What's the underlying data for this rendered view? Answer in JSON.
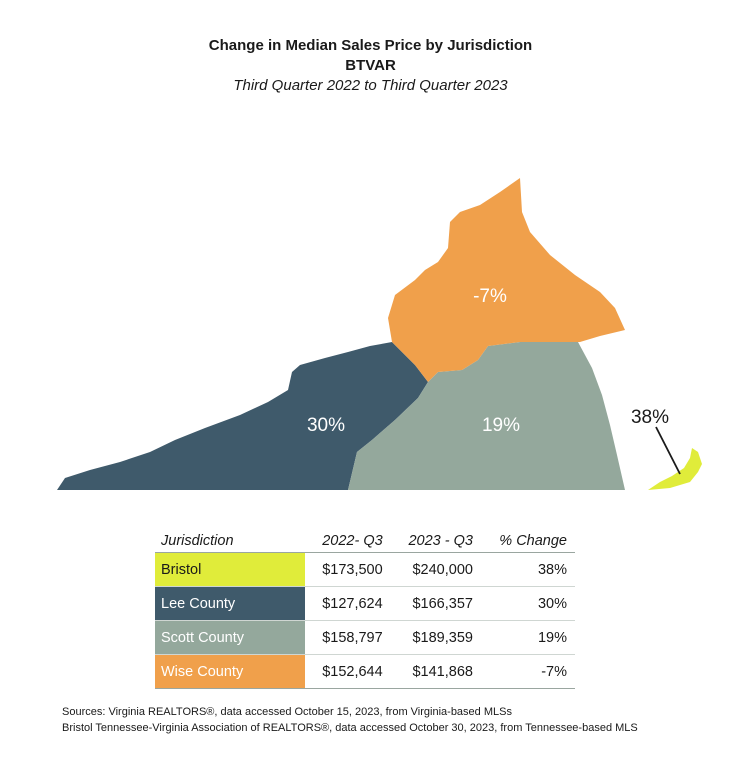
{
  "header": {
    "title": "Change in Median Sales Price by Jurisdiction",
    "subtitle": "BTVAR",
    "period": "Third Quarter 2022 to Third Quarter 2023"
  },
  "map": {
    "regions": [
      {
        "name": "Wise County",
        "label": "-7%",
        "color": "#F0A04B"
      },
      {
        "name": "Lee County",
        "label": "30%",
        "color": "#3F5A6B"
      },
      {
        "name": "Scott County",
        "label": "19%",
        "color": "#94A89C"
      },
      {
        "name": "Bristol",
        "label": "38%",
        "color": "#E0EC3A"
      }
    ]
  },
  "table": {
    "headers": [
      "Jurisdiction",
      "2022- Q3",
      "2023 - Q3",
      "% Change"
    ],
    "rows": [
      {
        "jurisdiction": "Bristol",
        "q3_2022": "$173,500",
        "q3_2023": "$240,000",
        "change": "38%",
        "color": "#E0EC3A",
        "text_color": "#1a1a1a"
      },
      {
        "jurisdiction": "Lee County",
        "q3_2022": "$127,624",
        "q3_2023": "$166,357",
        "change": "30%",
        "color": "#3F5A6B",
        "text_color": "#ffffff"
      },
      {
        "jurisdiction": "Scott County",
        "q3_2022": "$158,797",
        "q3_2023": "$189,359",
        "change": "19%",
        "color": "#94A89C",
        "text_color": "#ffffff"
      },
      {
        "jurisdiction": "Wise County",
        "q3_2022": "$152,644",
        "q3_2023": "$141,868",
        "change": "-7%",
        "color": "#F0A04B",
        "text_color": "#ffffff"
      }
    ]
  },
  "sources": {
    "line1": "Sources: Virginia REALTORS®, data accessed October 15, 2023, from Virginia-based MLSs",
    "line2": "Bristol Tennessee-Virginia Association of REALTORS®, data accessed October 30, 2023, from Tennessee-based MLS"
  }
}
